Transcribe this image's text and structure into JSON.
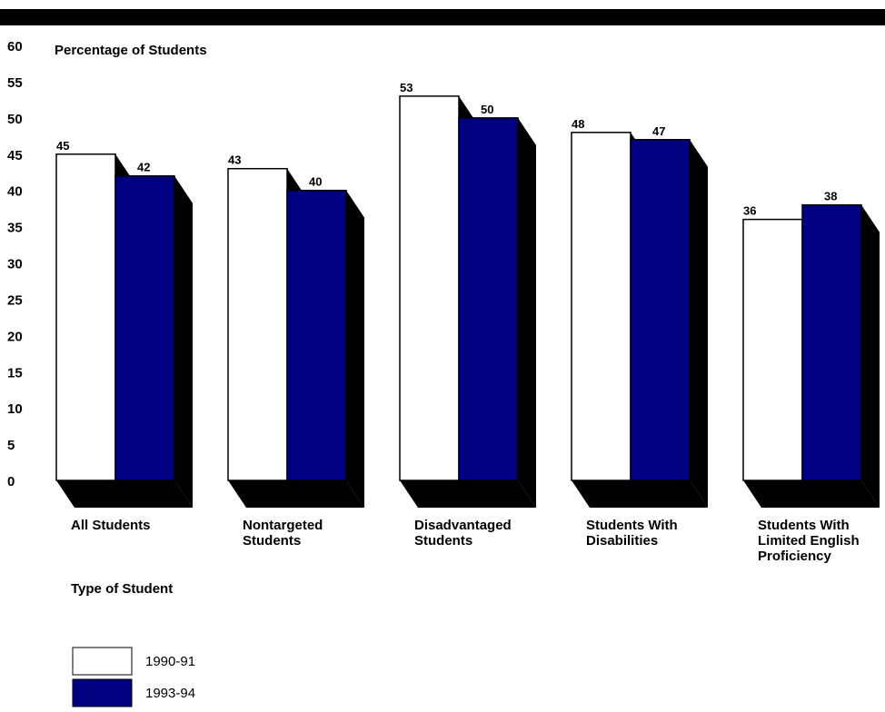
{
  "chart_data": {
    "type": "bar",
    "ylabel": "Percentage of Students",
    "xlabel": "Type of Student",
    "ylim": [
      0,
      60
    ],
    "yticks": [
      0,
      5,
      10,
      15,
      20,
      25,
      30,
      35,
      40,
      45,
      50,
      55,
      60
    ],
    "categories": [
      [
        "All Students"
      ],
      [
        "Nontargeted",
        "Students"
      ],
      [
        "Disadvantaged",
        "Students"
      ],
      [
        "Students With",
        "Disabilities"
      ],
      [
        "Students With",
        "Limited English",
        "Proficiency"
      ]
    ],
    "series": [
      {
        "name": "1990-91",
        "values": [
          45,
          43,
          53,
          48,
          36
        ],
        "color": "#ffffff"
      },
      {
        "name": "1993-94",
        "values": [
          42,
          40,
          50,
          47,
          38
        ],
        "color": "#000080"
      }
    ],
    "shadow_color": "#000000",
    "legend_placement": "bottom-left"
  }
}
